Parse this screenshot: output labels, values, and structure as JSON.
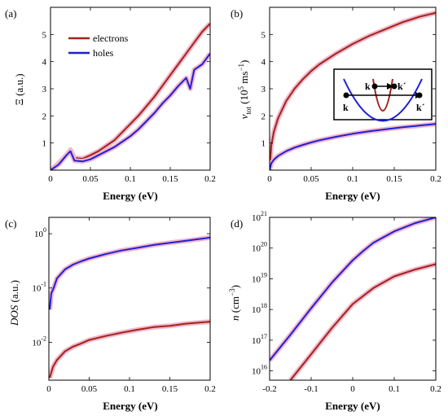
{
  "panel_labels": [
    "(a)",
    "(b)",
    "(c)",
    "(d)"
  ],
  "inset": {
    "label_k_left": "k",
    "label_k_mid": "k",
    "label_k_mid_prime": "k´",
    "label_k_right": "k´"
  },
  "colors": {
    "electrons": "#a0241a",
    "holes": "#1f1fd6",
    "shadow": "#f2b6cc"
  },
  "chart_data": [
    {
      "id": "a",
      "type": "line",
      "xlabel": "Energy (eV)",
      "ylabel": "Ξ (a.u.)",
      "xlim": [
        0,
        0.2
      ],
      "ylim": [
        0,
        6
      ],
      "xticks": [
        0,
        0.05,
        0.1,
        0.15,
        0.2
      ],
      "xtick_labels": [
        "0",
        "0.05",
        "0.1",
        "0.15",
        "0.2"
      ],
      "yticks": [
        1,
        2,
        3,
        4,
        5
      ],
      "ytick_labels": [
        "1",
        "2",
        "3",
        "4",
        "5"
      ],
      "legend": "top-left",
      "series": [
        {
          "name": "electrons",
          "x": [
            0,
            0.01,
            0.02,
            0.025,
            0.03,
            0.04,
            0.05,
            0.06,
            0.07,
            0.08,
            0.09,
            0.1,
            0.11,
            0.12,
            0.13,
            0.14,
            0.15,
            0.16,
            0.17,
            0.18,
            0.19,
            0.2
          ],
          "values": [
            0,
            0.25,
            0.55,
            0.75,
            0.45,
            0.42,
            0.55,
            0.7,
            0.9,
            1.1,
            1.4,
            1.7,
            2.0,
            2.35,
            2.7,
            3.1,
            3.5,
            3.9,
            4.3,
            4.7,
            5.1,
            5.4
          ]
        },
        {
          "name": "holes",
          "x": [
            0,
            0.01,
            0.02,
            0.025,
            0.03,
            0.04,
            0.05,
            0.06,
            0.07,
            0.08,
            0.09,
            0.1,
            0.11,
            0.12,
            0.13,
            0.14,
            0.15,
            0.16,
            0.17,
            0.175,
            0.18,
            0.19,
            0.2
          ],
          "values": [
            0,
            0.2,
            0.55,
            0.7,
            0.35,
            0.32,
            0.4,
            0.55,
            0.7,
            0.85,
            1.05,
            1.25,
            1.5,
            1.8,
            2.1,
            2.45,
            2.75,
            3.1,
            3.4,
            3.0,
            3.7,
            3.9,
            4.3
          ]
        }
      ]
    },
    {
      "id": "b",
      "type": "line",
      "xlabel": "Energy (eV)",
      "ylabel": "v_tot (10^5 ms^-1)",
      "xlim": [
        0,
        0.2
      ],
      "ylim": [
        0,
        6
      ],
      "xticks": [
        0,
        0.05,
        0.1,
        0.15,
        0.2
      ],
      "xtick_labels": [
        "0",
        "0.05",
        "0.1",
        "0.15",
        "0.2"
      ],
      "yticks": [
        1,
        2,
        3,
        4,
        5
      ],
      "ytick_labels": [
        "1",
        "2",
        "3",
        "4",
        "5"
      ],
      "series": [
        {
          "name": "electrons",
          "x": [
            0,
            0.002,
            0.005,
            0.01,
            0.02,
            0.03,
            0.04,
            0.05,
            0.06,
            0.08,
            0.1,
            0.12,
            0.14,
            0.16,
            0.18,
            0.2
          ],
          "values": [
            0,
            0.9,
            1.4,
            1.9,
            2.55,
            3.0,
            3.35,
            3.65,
            3.9,
            4.3,
            4.65,
            4.95,
            5.2,
            5.45,
            5.65,
            5.8
          ]
        },
        {
          "name": "holes",
          "x": [
            0,
            0.002,
            0.005,
            0.01,
            0.02,
            0.03,
            0.04,
            0.05,
            0.06,
            0.08,
            0.1,
            0.12,
            0.14,
            0.16,
            0.18,
            0.2
          ],
          "values": [
            0,
            0.25,
            0.38,
            0.52,
            0.7,
            0.83,
            0.93,
            1.02,
            1.1,
            1.23,
            1.34,
            1.43,
            1.51,
            1.58,
            1.64,
            1.7
          ]
        }
      ]
    },
    {
      "id": "c",
      "type": "line",
      "xlabel": "Energy (eV)",
      "ylabel": "DOS (a.u.)",
      "yscale": "log",
      "xlim": [
        0,
        0.2
      ],
      "ylim": [
        0.002,
        2
      ],
      "xticks": [
        0,
        0.05,
        0.1,
        0.15,
        0.2
      ],
      "xtick_labels": [
        "0",
        "0.05",
        "0.1",
        "0.15",
        "0.2"
      ],
      "yticks": [
        0.01,
        0.1,
        1
      ],
      "ytick_labels": [
        "10",
        "10",
        "10"
      ],
      "ytick_exponents": [
        "-2",
        "-1",
        "0"
      ],
      "series": [
        {
          "name": "holes",
          "x": [
            0.001,
            0.003,
            0.006,
            0.01,
            0.02,
            0.03,
            0.04,
            0.05,
            0.07,
            0.09,
            0.11,
            0.13,
            0.15,
            0.17,
            0.2
          ],
          "values": [
            0.04,
            0.08,
            0.1,
            0.15,
            0.22,
            0.27,
            0.31,
            0.35,
            0.42,
            0.49,
            0.55,
            0.62,
            0.68,
            0.74,
            0.85
          ]
        },
        {
          "name": "electrons",
          "x": [
            0.001,
            0.005,
            0.01,
            0.02,
            0.03,
            0.04,
            0.05,
            0.07,
            0.09,
            0.11,
            0.13,
            0.15,
            0.17,
            0.2
          ],
          "values": [
            0.0022,
            0.0035,
            0.0047,
            0.0068,
            0.0083,
            0.0095,
            0.011,
            0.013,
            0.015,
            0.017,
            0.019,
            0.02,
            0.022,
            0.024
          ]
        }
      ]
    },
    {
      "id": "d",
      "type": "line",
      "xlabel": "Energy (eV)",
      "ylabel": "n (cm^-3)",
      "yscale": "log",
      "xlim": [
        -0.2,
        0.2
      ],
      "ylim": [
        5000000000000000.0,
        1e+21
      ],
      "xticks": [
        -0.2,
        -0.1,
        0,
        0.1,
        0.2
      ],
      "xtick_labels": [
        "-0.2",
        "-0.1",
        "0",
        "0.1",
        "0.2"
      ],
      "yticks": [
        1e+16,
        1e+17,
        1e+18,
        1e+19,
        1e+20,
        1e+21
      ],
      "ytick_labels": [
        "10",
        "10",
        "10",
        "10",
        "10",
        "10"
      ],
      "ytick_exponents": [
        "16",
        "17",
        "18",
        "19",
        "20",
        "21"
      ],
      "series": [
        {
          "name": "holes",
          "x": [
            -0.2,
            -0.15,
            -0.1,
            -0.05,
            0,
            0.025,
            0.05,
            0.1,
            0.15,
            0.2
          ],
          "values": [
            2.2e+16,
            1.5e+17,
            1.1e+18,
            7.5e+18,
            4e+19,
            8e+19,
            1.5e+20,
            3.5e+20,
            6.5e+20,
            1e+21
          ]
        },
        {
          "name": "electrons",
          "x": [
            -0.15,
            -0.1,
            -0.05,
            0,
            0.05,
            0.1,
            0.15,
            0.2
          ],
          "values": [
            5000000000000000.0,
            3.5e+16,
            2.5e+17,
            1.5e+18,
            5e+18,
            1.2e+19,
            2e+19,
            3e+19
          ]
        }
      ]
    }
  ]
}
